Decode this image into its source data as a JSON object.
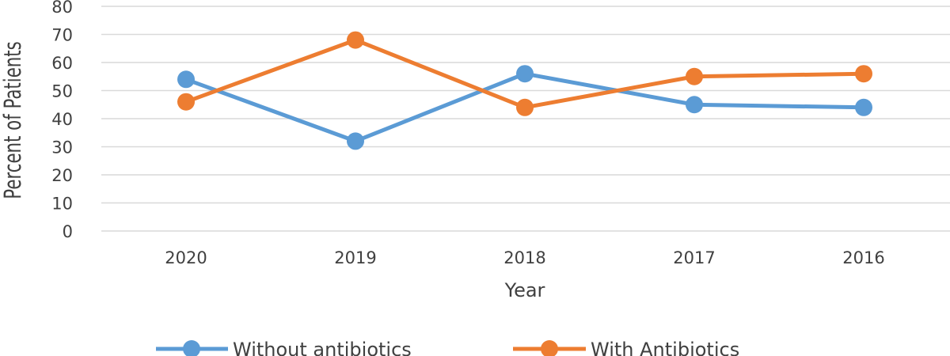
{
  "chart_data": {
    "type": "line",
    "categories": [
      "2020",
      "2019",
      "2018",
      "2017",
      "2016"
    ],
    "series": [
      {
        "name": "Without antibiotics",
        "values": [
          54,
          32,
          56,
          45,
          44
        ],
        "color": "#5B9BD5"
      },
      {
        "name": "With Antibiotics",
        "values": [
          46,
          68,
          44,
          55,
          56
        ],
        "color": "#ED7D31"
      }
    ],
    "xlabel": "Year",
    "ylabel": "Percent  of Patients",
    "ylim": [
      0,
      80
    ],
    "yticks": [
      0,
      10,
      20,
      30,
      40,
      50,
      60,
      70,
      80
    ],
    "grid": true,
    "legend_position": "bottom"
  }
}
